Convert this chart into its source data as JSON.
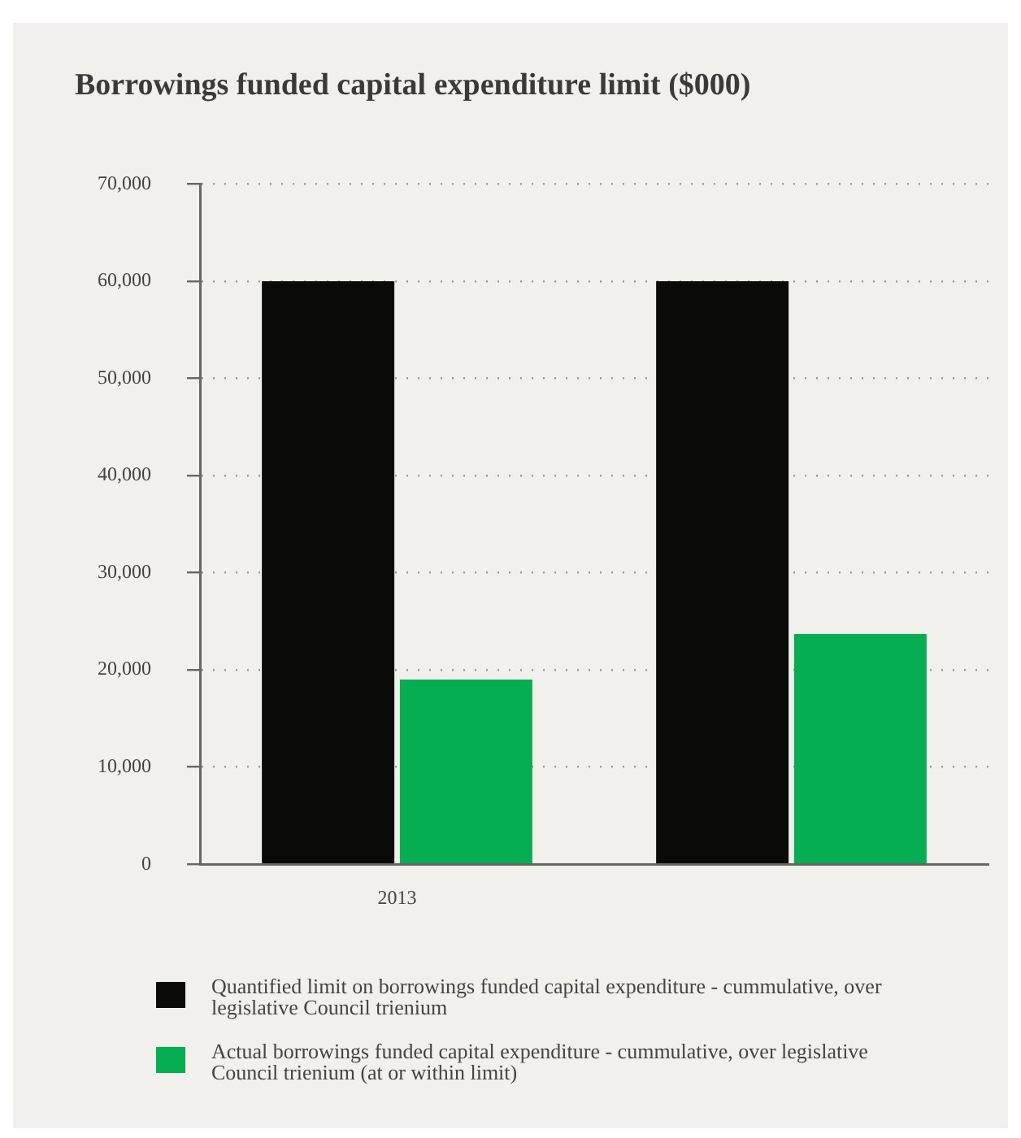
{
  "chart_data": {
    "type": "bar",
    "title": "Borrowings funded capital expenditure limit ($000)",
    "categories": [
      "2013",
      null
    ],
    "series": [
      {
        "name": "Quantified limit on borrowings funded capital expenditure - cummulative, over legislative Council trienium",
        "color": "#0a0b09",
        "values": [
          60000,
          60000
        ]
      },
      {
        "name": "Actual borrowings funded capital expenditure - cummulative, over legislative Council trienium (at or within limit)",
        "color": "#05ae50",
        "values": [
          19000,
          23700
        ]
      }
    ],
    "ylim": [
      0,
      70000
    ],
    "yticks": [
      0,
      {
        "value": 10000,
        "label": "10,000"
      },
      {
        "value": 20000,
        "label": "20,000"
      },
      {
        "value": 30000,
        "label": "30,000"
      },
      {
        "value": 40000,
        "label": "40,000"
      },
      {
        "value": 50000,
        "label": "50,000"
      },
      {
        "value": 60000,
        "label": "60,000"
      },
      {
        "value": 70000,
        "label": "70,000"
      }
    ],
    "grid": "y",
    "legend": "bottom"
  }
}
